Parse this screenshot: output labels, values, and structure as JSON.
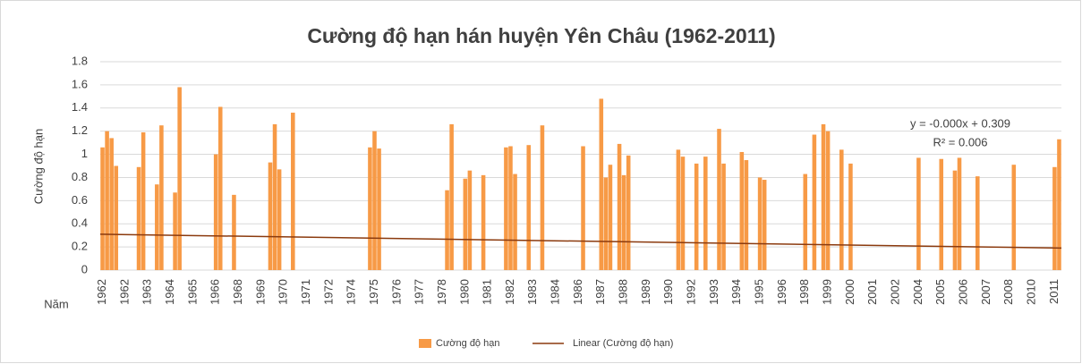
{
  "chart_data": {
    "type": "bar",
    "title": "Cường độ hạn hán huyện Yên Châu (1962-2011)",
    "y_label": "Cường độ hạn",
    "x_label": "Năm",
    "ylim": [
      0,
      1.8
    ],
    "yticks": [
      0,
      0.2,
      0.4,
      0.6,
      0.8,
      1,
      1.2,
      1.4,
      1.6,
      1.8
    ],
    "grid": true,
    "categories": [
      "1962",
      null,
      null,
      null,
      null,
      "1962",
      null,
      null,
      null,
      null,
      "1963",
      null,
      null,
      null,
      null,
      "1964",
      null,
      null,
      null,
      null,
      "1965",
      null,
      null,
      null,
      null,
      "1966",
      null,
      null,
      null,
      null,
      "1968",
      null,
      null,
      null,
      null,
      "1969",
      null,
      null,
      null,
      null,
      "1970",
      null,
      null,
      null,
      null,
      "1971",
      null,
      null,
      null,
      null,
      "1972",
      null,
      null,
      null,
      null,
      "1974",
      null,
      null,
      null,
      null,
      "1975",
      null,
      null,
      null,
      null,
      "1976",
      null,
      null,
      null,
      null,
      "1977",
      null,
      null,
      null,
      null,
      "1978",
      null,
      null,
      null,
      null,
      "1980",
      null,
      null,
      null,
      null,
      "1981",
      null,
      null,
      null,
      null,
      "1982",
      null,
      null,
      null,
      null,
      "1983",
      null,
      null,
      null,
      null,
      "1984",
      null,
      null,
      null,
      null,
      "1986",
      null,
      null,
      null,
      null,
      "1987",
      null,
      null,
      null,
      null,
      "1988",
      null,
      null,
      null,
      null,
      "1989",
      null,
      null,
      null,
      null,
      "1990",
      null,
      null,
      null,
      null,
      "1992",
      null,
      null,
      null,
      null,
      "1993",
      null,
      null,
      null,
      null,
      "1994",
      null,
      null,
      null,
      null,
      "1995",
      null,
      null,
      null,
      null,
      "1996",
      null,
      null,
      null,
      null,
      "1998",
      null,
      null,
      null,
      null,
      "1999",
      null,
      null,
      null,
      null,
      "2000",
      null,
      null,
      null,
      null,
      "2001",
      null,
      null,
      null,
      null,
      "2002",
      null,
      null,
      null,
      null,
      "2004",
      null,
      null,
      null,
      null,
      "2005",
      null,
      null,
      null,
      null,
      "2006",
      null,
      null,
      null,
      null,
      "2007",
      null,
      null,
      null,
      null,
      "2008",
      null,
      null,
      null,
      null,
      "2010",
      null,
      null,
      null,
      null,
      "2011",
      null
    ],
    "series": [
      {
        "name": "Cường độ hạn",
        "color": "#f79a46",
        "values": [
          1.06,
          1.2,
          1.14,
          0.9,
          null,
          null,
          null,
          null,
          0.89,
          1.19,
          null,
          null,
          0.74,
          1.25,
          null,
          null,
          0.67,
          1.58,
          null,
          null,
          null,
          null,
          null,
          null,
          null,
          1.0,
          1.41,
          null,
          null,
          0.65,
          null,
          null,
          null,
          null,
          null,
          null,
          null,
          0.93,
          1.26,
          0.87,
          null,
          null,
          1.36,
          null,
          null,
          null,
          null,
          null,
          null,
          null,
          null,
          null,
          null,
          null,
          null,
          null,
          null,
          null,
          null,
          1.06,
          1.2,
          1.05,
          null,
          null,
          null,
          null,
          null,
          null,
          null,
          null,
          null,
          null,
          null,
          null,
          null,
          null,
          0.69,
          1.26,
          null,
          null,
          0.79,
          0.86,
          null,
          null,
          0.82,
          null,
          null,
          null,
          null,
          1.06,
          1.07,
          0.83,
          null,
          null,
          1.08,
          null,
          null,
          1.25,
          null,
          null,
          null,
          null,
          null,
          null,
          null,
          null,
          1.07,
          null,
          null,
          null,
          1.48,
          0.8,
          0.91,
          null,
          1.09,
          0.82,
          0.99,
          null,
          null,
          null,
          null,
          null,
          null,
          null,
          null,
          null,
          null,
          1.04,
          0.98,
          null,
          null,
          0.92,
          null,
          0.98,
          null,
          null,
          1.22,
          0.92,
          null,
          null,
          null,
          1.02,
          0.95,
          null,
          null,
          0.8,
          0.78,
          null,
          null,
          null,
          null,
          null,
          null,
          null,
          null,
          0.83,
          null,
          1.17,
          null,
          1.26,
          1.2,
          null,
          null,
          1.04,
          null,
          0.92,
          null,
          null,
          null,
          null,
          null,
          null,
          null,
          null,
          null,
          null,
          null,
          null,
          null,
          null,
          0.97,
          null,
          null,
          null,
          null,
          0.96,
          null,
          null,
          0.86,
          0.97,
          null,
          null,
          null,
          0.81,
          null,
          null,
          null,
          null,
          null,
          null,
          null,
          0.91,
          null,
          null,
          null,
          null,
          null,
          null,
          null,
          null,
          0.89,
          1.13
        ]
      }
    ],
    "trendline": {
      "name": "Linear (Cường độ hạn)",
      "color": "#8b3a0e",
      "start": 0.31,
      "end": 0.19,
      "equation": "y = -0.000x + 0.309",
      "r_squared": "R² = 0.006"
    }
  }
}
